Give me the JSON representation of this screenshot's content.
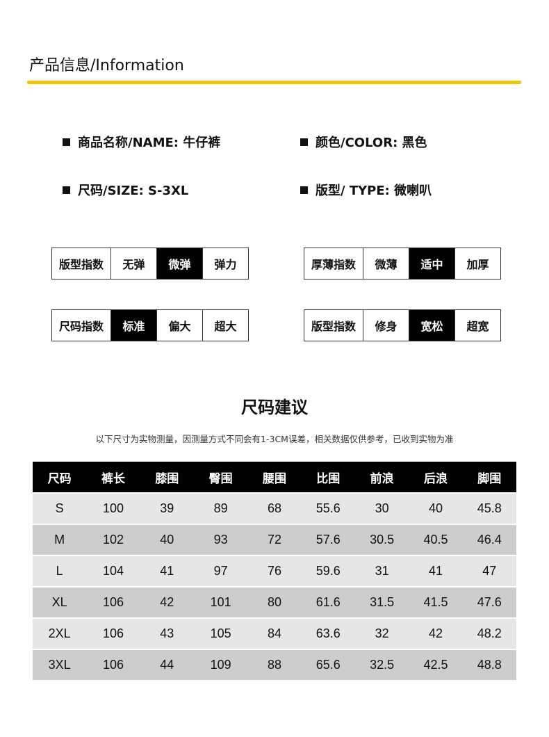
{
  "header": {
    "title": "产品信息/Information",
    "accent_color": "#f5c400"
  },
  "specs": {
    "name": "商品名称/NAME: 牛仔裤",
    "color": "颜色/COLOR: 黑色",
    "size": "尺码/SIZE: S-3XL",
    "type": "版型/ TYPE: 微喇叭"
  },
  "indices": [
    {
      "label": "版型指数",
      "options": [
        "无弹",
        "微弹",
        "弹力"
      ],
      "selected": 1
    },
    {
      "label": "厚薄指数",
      "options": [
        "微薄",
        "适中",
        "加厚"
      ],
      "selected": 1
    },
    {
      "label": "尺码指数",
      "options": [
        "标准",
        "偏大",
        "超大"
      ],
      "selected": 0
    },
    {
      "label": "版型指数",
      "options": [
        "修身",
        "宽松",
        "超宽"
      ],
      "selected": 1
    }
  ],
  "size_chart": {
    "title": "尺码建议",
    "note": "以下尺寸为实物测量，因测量方式不同会有1-3CM误差，相关数据仅供参考，已收到实物为准",
    "headers": [
      "尺码",
      "裤长",
      "膝围",
      "臀围",
      "腰围",
      "比围",
      "前浪",
      "后浪",
      "脚围"
    ],
    "rows": [
      [
        "S",
        "100",
        "39",
        "89",
        "68",
        "55.6",
        "30",
        "40",
        "45.8"
      ],
      [
        "M",
        "102",
        "40",
        "93",
        "72",
        "57.6",
        "30.5",
        "40.5",
        "46.4"
      ],
      [
        "L",
        "104",
        "41",
        "97",
        "76",
        "59.6",
        "31",
        "41",
        "47"
      ],
      [
        "XL",
        "106",
        "42",
        "101",
        "80",
        "61.6",
        "31.5",
        "41.5",
        "47.6"
      ],
      [
        "2XL",
        "106",
        "43",
        "105",
        "84",
        "63.6",
        "32",
        "42",
        "48.2"
      ],
      [
        "3XL",
        "106",
        "44",
        "109",
        "88",
        "65.6",
        "32.5",
        "42.5",
        "48.8"
      ]
    ]
  }
}
